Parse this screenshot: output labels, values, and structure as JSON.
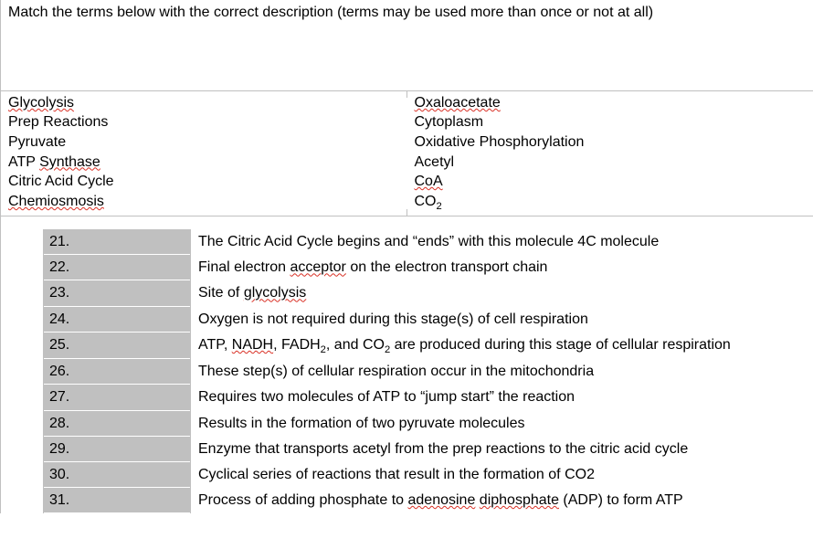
{
  "instruction": "Match the terms below with the correct description (terms may be used more than once or not at all)",
  "terms_left": [
    {
      "pre": "",
      "squiggle": "Glycolysis",
      "post": ""
    },
    {
      "pre": "Prep Reactions",
      "squiggle": "",
      "post": ""
    },
    {
      "pre": "Pyruvate",
      "squiggle": "",
      "post": ""
    },
    {
      "pre": "ATP ",
      "squiggle": "Synthase",
      "post": ""
    },
    {
      "pre": "Citric Acid Cycle",
      "squiggle": "",
      "post": ""
    },
    {
      "pre": "",
      "squiggle": "Chemiosmosis",
      "post": ""
    }
  ],
  "terms_right": [
    {
      "pre": "",
      "squiggle": "Oxaloacetate",
      "post": ""
    },
    {
      "pre": "Cytoplasm",
      "squiggle": "",
      "post": ""
    },
    {
      "pre": "Oxidative Phosphorylation",
      "squiggle": "",
      "post": ""
    },
    {
      "pre": "Acetyl",
      "squiggle": "",
      "post": ""
    },
    {
      "pre": "",
      "squiggle": "CoA",
      "post": ""
    },
    {
      "pre": "CO",
      "squiggle": "",
      "post": "",
      "sub": "2"
    }
  ],
  "questions": [
    {
      "num": "21.",
      "desc_parts": [
        {
          "t": "The Citric Acid Cycle begins and “ends” with this molecule 4C molecule"
        }
      ]
    },
    {
      "num": "22.",
      "desc_parts": [
        {
          "t": "Final electron "
        },
        {
          "t": "acceptor",
          "sq": true
        },
        {
          "t": " on the electron transport chain"
        }
      ]
    },
    {
      "num": "23.",
      "desc_parts": [
        {
          "t": "Site of "
        },
        {
          "t": "glycolysis",
          "sq": true
        }
      ]
    },
    {
      "num": "24.",
      "desc_parts": [
        {
          "t": "Oxygen is not required during this stage(s) of cell respiration"
        }
      ]
    },
    {
      "num": "25.",
      "desc_parts": [
        {
          "t": "ATP, "
        },
        {
          "t": "NADH",
          "sq": true
        },
        {
          "t": ", FADH"
        },
        {
          "t": "2",
          "sub": true
        },
        {
          "t": ", and CO"
        },
        {
          "t": "2",
          "sub": true
        },
        {
          "t": " are produced during this stage of cellular respiration"
        }
      ]
    },
    {
      "num": "26.",
      "desc_parts": [
        {
          "t": "These step(s) of cellular respiration occur in the mitochondria"
        }
      ]
    },
    {
      "num": "27.",
      "desc_parts": [
        {
          "t": "Requires two molecules of ATP to “jump start” the reaction"
        }
      ]
    },
    {
      "num": "28.",
      "desc_parts": [
        {
          "t": "Results in the formation of two pyruvate molecules"
        }
      ]
    },
    {
      "num": "29.",
      "desc_parts": [
        {
          "t": "Enzyme that transports acetyl from the prep reactions to the citric acid cycle"
        }
      ]
    },
    {
      "num": "30.",
      "desc_parts": [
        {
          "t": "Cyclical series of reactions that result in the formation of CO2"
        }
      ]
    },
    {
      "num": "31.",
      "desc_parts": [
        {
          "t": "Process of adding phosphate to "
        },
        {
          "t": "adenosine",
          "sq": true
        },
        {
          "t": " "
        },
        {
          "t": "diphosphate",
          "sq": true
        },
        {
          "t": " (ADP) to form ATP"
        }
      ]
    }
  ]
}
